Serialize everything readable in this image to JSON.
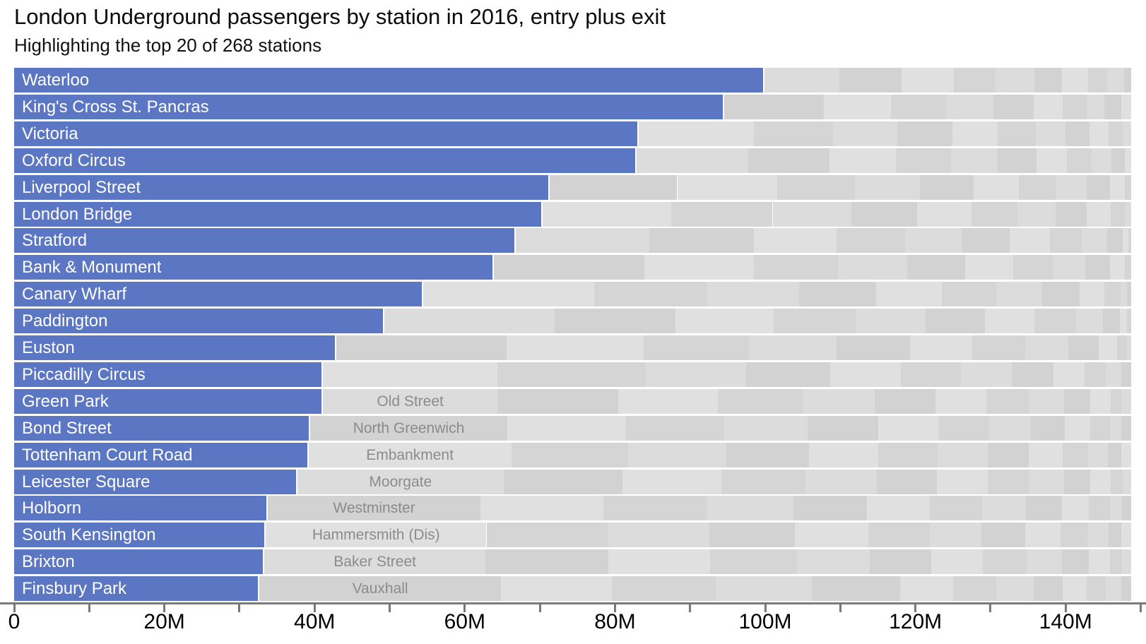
{
  "header": {
    "title": "London Underground passengers by station in 2016, entry plus exit",
    "subtitle": "Highlighting the top 20 of 268 stations"
  },
  "chart_data": {
    "type": "bar",
    "variant": "wrapped-bars-horizontal",
    "title": "London Underground passengers by station in 2016, entry plus exit",
    "subtitle": "Highlighting the top 20 of 268 stations",
    "unit": "millions of passengers",
    "orientation": "horizontal",
    "xlabel": "",
    "ylabel": "",
    "xlim": [
      0,
      150.8
    ],
    "row_total": 148.5,
    "grid": false,
    "legend": "none",
    "colors": {
      "highlight": "#5b76c2",
      "bar_label": "#ffffff",
      "gray_shades": [
        "#dcdcdc",
        "#d2d2d2",
        "#e0e0e0",
        "#d5d5d5"
      ],
      "gray_label": "#8b8b8b",
      "axis": "#7b7b7b",
      "axis_text": "#000000"
    },
    "x_ticks": [
      0,
      10,
      20,
      30,
      40,
      50,
      60,
      70,
      80,
      90,
      100,
      110,
      120,
      130,
      140,
      150
    ],
    "x_tick_labels": [
      {
        "value": 0,
        "label": "0"
      },
      {
        "value": 20,
        "label": "20M"
      },
      {
        "value": 40,
        "label": "40M"
      },
      {
        "value": 60,
        "label": "60M"
      },
      {
        "value": 80,
        "label": "80M"
      },
      {
        "value": 100,
        "label": "100M"
      },
      {
        "value": 120,
        "label": "120M"
      },
      {
        "value": 140,
        "label": "140M"
      }
    ],
    "rows": [
      {
        "name": "Waterloo",
        "value": 99.7,
        "gray_segments": [
          10.0,
          8.3,
          6.9,
          5.6,
          5.2,
          3.6,
          3.5,
          2.5,
          2.3,
          0.9
        ]
      },
      {
        "name": "King's Cross St. Pancras",
        "value": 94.4,
        "gray_segments": [
          13.2,
          9.0,
          7.3,
          6.3,
          5.4,
          3.8,
          3.2,
          2.4,
          2.2,
          1.3
        ]
      },
      {
        "name": "Victoria",
        "value": 83.0,
        "gray_segments": [
          15.3,
          10.5,
          8.6,
          7.3,
          6.1,
          5.0,
          4.0,
          3.2,
          2.5,
          1.9,
          1.1
        ]
      },
      {
        "name": "Oxford Circus",
        "value": 82.7,
        "gray_segments": [
          14.9,
          10.8,
          8.8,
          7.4,
          6.2,
          5.1,
          4.1,
          3.3,
          2.6,
          1.8,
          0.8
        ]
      },
      {
        "name": "Liverpool Street",
        "value": 71.1,
        "gray_segments": [
          17.0,
          13.3,
          10.4,
          8.6,
          7.2,
          6.0,
          5.0,
          4.0,
          3.1,
          2.0,
          0.8
        ]
      },
      {
        "name": "London Bridge",
        "value": 70.2,
        "gray_segments": [
          17.1,
          13.5,
          10.5,
          8.7,
          7.3,
          6.1,
          5.1,
          4.1,
          3.2,
          2.0,
          0.7
        ]
      },
      {
        "name": "Stratford",
        "value": 66.6,
        "gray_segments": [
          17.8,
          13.9,
          11.0,
          9.1,
          7.6,
          6.4,
          5.3,
          4.3,
          3.3,
          2.1,
          0.8,
          0.3
        ]
      },
      {
        "name": "Bank & Monument",
        "value": 63.7,
        "gray_segments": [
          20.0,
          14.6,
          11.2,
          9.2,
          7.7,
          6.4,
          5.3,
          4.3,
          3.3,
          2.0,
          0.8
        ]
      },
      {
        "name": "Canary Wharf",
        "value": 54.3,
        "gray_segments": [
          22.7,
          15.1,
          12.2,
          10.3,
          8.7,
          7.3,
          6.1,
          5.0,
          3.3,
          2.1,
          0.9,
          0.5
        ]
      },
      {
        "name": "Paddington",
        "value": 49.1,
        "gray_segments": [
          22.7,
          16.1,
          13.0,
          11.0,
          9.3,
          7.9,
          6.6,
          5.5,
          3.6,
          2.2,
          1.0,
          0.5
        ]
      },
      {
        "name": "Euston",
        "value": 42.7,
        "gray_segments": [
          22.7,
          18.2,
          14.1,
          11.6,
          9.8,
          8.3,
          7.0,
          5.8,
          4.0,
          2.5,
          1.3,
          0.5
        ]
      },
      {
        "name": "Piccadilly Circus",
        "value": 40.9,
        "gray_segments": [
          23.3,
          19.7,
          13.4,
          11.2,
          9.4,
          8.0,
          6.7,
          5.6,
          4.1,
          2.9,
          2.0,
          1.3
        ]
      },
      {
        "name": "Green Park",
        "value": 40.9,
        "gray_label": "Old Street",
        "gray_label_value": 23.3,
        "gray_segments": [
          23.3,
          16.0,
          13.3,
          11.3,
          9.6,
          8.1,
          6.8,
          5.7,
          4.6,
          3.5,
          2.7,
          1.4,
          1.3
        ]
      },
      {
        "name": "Bond Street",
        "value": 39.2,
        "gray_label": "North Greenwich",
        "gray_label_value": 26.3,
        "gray_segments": [
          26.3,
          15.8,
          13.1,
          11.1,
          9.4,
          8.0,
          6.7,
          5.6,
          4.5,
          3.4,
          2.6,
          1.5,
          1.3
        ]
      },
      {
        "name": "Tottenham Court Road",
        "value": 39.0,
        "gray_label": "Embankment",
        "gray_label_value": 27.0,
        "gray_segments": [
          27.0,
          15.6,
          13.0,
          11.0,
          9.3,
          7.9,
          6.6,
          5.5,
          4.5,
          3.4,
          2.6,
          1.8,
          1.3
        ]
      },
      {
        "name": "Leicester Square",
        "value": 37.5,
        "gray_label": "Moorgate",
        "gray_label_value": 27.5,
        "gray_segments": [
          27.5,
          15.8,
          13.2,
          11.2,
          9.5,
          8.0,
          6.7,
          5.6,
          4.6,
          3.5,
          2.7,
          1.6,
          1.1
        ]
      },
      {
        "name": "Holborn",
        "value": 33.6,
        "gray_label": "Westminster",
        "gray_label_value": 28.3,
        "gray_segments": [
          28.3,
          16.4,
          13.7,
          11.6,
          9.8,
          8.3,
          7.0,
          5.8,
          4.8,
          3.6,
          2.8,
          1.6,
          1.2
        ]
      },
      {
        "name": "South Kensington",
        "value": 33.3,
        "gray_label": "Hammersmith (Dis)",
        "gray_label_value": 29.4,
        "gray_segments": [
          29.4,
          16.2,
          13.5,
          11.4,
          9.7,
          8.2,
          6.9,
          5.8,
          4.7,
          3.6,
          2.8,
          1.7,
          1.3
        ]
      },
      {
        "name": "Brixton",
        "value": 33.1,
        "gray_label": "Baker Street",
        "gray_label_value": 29.5,
        "gray_segments": [
          29.5,
          16.3,
          13.6,
          11.5,
          9.7,
          8.2,
          6.9,
          5.8,
          4.7,
          3.6,
          2.8,
          1.6,
          1.2
        ]
      },
      {
        "name": "Finsbury Park",
        "value": 32.5,
        "gray_label": "Vauxhall",
        "gray_label_value": 32.1,
        "gray_segments": [
          32.1,
          14.8,
          13.8,
          12.8,
          11.8,
          7.0,
          5.8,
          5.0,
          3.8,
          3.2,
          2.6,
          2.0,
          1.3
        ]
      }
    ]
  }
}
